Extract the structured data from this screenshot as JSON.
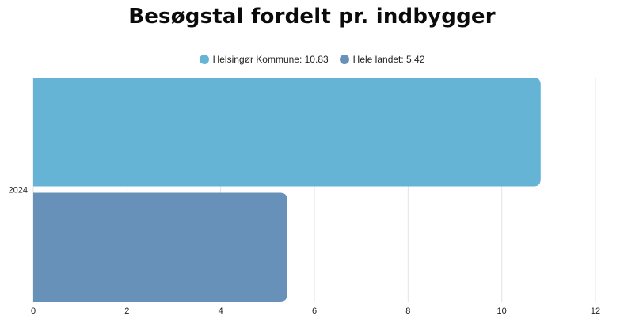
{
  "chart_data": {
    "type": "bar",
    "orientation": "horizontal",
    "title": "Besøgstal fordelt pr. indbygger",
    "categories": [
      "2024"
    ],
    "series": [
      {
        "name": "Helsingør Kommune",
        "values": [
          10.83
        ],
        "color": "#65b3d5"
      },
      {
        "name": "Hele landet",
        "values": [
          5.42
        ],
        "color": "#6891ba"
      }
    ],
    "legend": [
      {
        "label": "Helsingør Kommune: 10.83",
        "color": "#65b3d5"
      },
      {
        "label": "Hele landet: 5.42",
        "color": "#6891ba"
      }
    ],
    "legend_position": "top-center",
    "xlim": [
      0,
      12
    ],
    "x_ticks": [
      0,
      2,
      4,
      6,
      8,
      10,
      12
    ],
    "xlabel": "",
    "ylabel": "",
    "grid": true
  }
}
